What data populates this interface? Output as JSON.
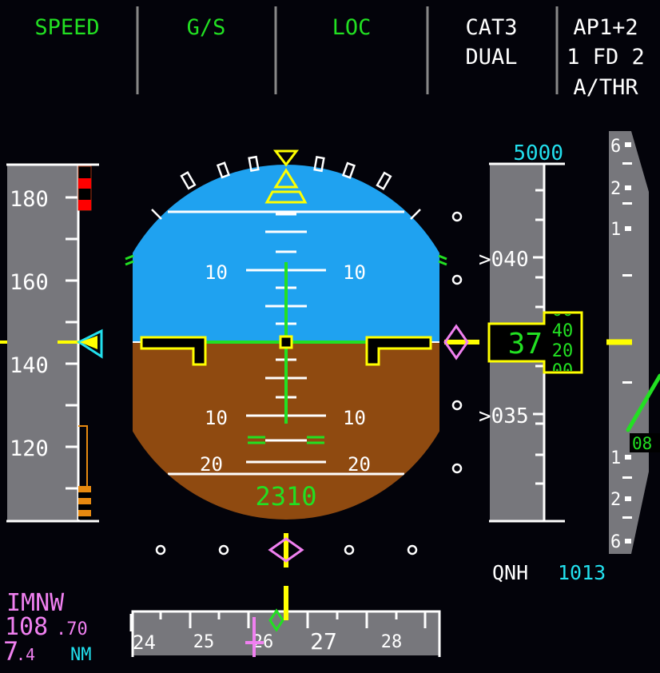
{
  "fma": [
    {
      "lines": [
        "SPEED"
      ],
      "color": "green"
    },
    {
      "lines": [
        "G/S"
      ],
      "color": "green"
    },
    {
      "lines": [
        "LOC"
      ],
      "color": "green"
    },
    {
      "lines": [
        "CAT3",
        "DUAL"
      ],
      "color": "white"
    },
    {
      "lines": [
        "AP1+2",
        "1 FD 2",
        "A/THR"
      ],
      "color": "white"
    }
  ],
  "speed_tape": {
    "labels": [
      "180",
      "160",
      "140",
      "120"
    ],
    "current_speed_kt": 145,
    "target_speed_kt": 145
  },
  "attitude": {
    "pitch_labels_up": [
      "10",
      "10"
    ],
    "pitch_labels_down": [
      "10",
      "10",
      "20",
      "20"
    ],
    "radio_altitude": "2310"
  },
  "altitude_tape": {
    "selected_altitude": "5000",
    "labels": [
      ">040",
      ">035"
    ],
    "current_hundreds": "37",
    "drum": [
      "00",
      "40",
      "20",
      "00"
    ]
  },
  "vertical_speed": {
    "labels_up": [
      "6",
      "2",
      "1"
    ],
    "labels_down": [
      "1",
      "2",
      "6"
    ],
    "value": "08"
  },
  "qnh": {
    "label": "QNH",
    "value": "1013"
  },
  "heading_tape": {
    "labels": [
      "24",
      "25",
      "26",
      "27",
      "28"
    ]
  },
  "ils": {
    "ident": "IMNW",
    "freq_main": "108",
    "freq_dec": ".70",
    "dist_main": "7",
    "dist_dec": ".4",
    "dist_unit": "NM"
  },
  "colors": {
    "sky": "#1fa2f0",
    "ground": "#8f4a10",
    "tape": "#77777c",
    "green": "#22e022",
    "cyan": "#22e0ee",
    "magenta": "#f080f0",
    "yellow": "#ffff00",
    "amber": "#e88a10",
    "red": "#ff0000"
  }
}
